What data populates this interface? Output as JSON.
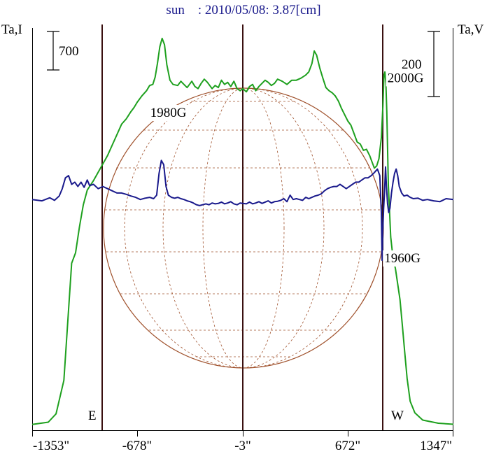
{
  "chart_data": {
    "type": "line",
    "title": "sun    : 2010/05/08: 3.87[cm]",
    "left_axis_label": "Ta,I",
    "right_axis_label": "Ta,V",
    "left_scale_label": "700",
    "right_scale_label": "200",
    "x_ticks": [
      "-1353\"",
      "-678\"",
      "-3\"",
      "672\"",
      "1347\""
    ],
    "limb_labels": {
      "east": "E",
      "west": "W"
    },
    "annotations": [
      {
        "text": "1980G",
        "x": -480,
        "v": 200
      },
      {
        "text": "2000G",
        "x": 1040,
        "v": 280
      },
      {
        "text": "1960G",
        "x": 1020,
        "v": -135
      }
    ],
    "limb_positions_arcsec": [
      -1000,
      -3,
      1000
    ],
    "xlim": [
      -1353,
      1347
    ],
    "series": [
      {
        "key": "stokes_i",
        "color": "#1ea01e",
        "axis": "left",
        "ylim": [
          0,
          3800
        ],
        "points": [
          [
            -1353,
            8
          ],
          [
            -1250,
            30
          ],
          [
            -1200,
            110
          ],
          [
            -1150,
            430
          ],
          [
            -1100,
            1550
          ],
          [
            -1075,
            1650
          ],
          [
            -1050,
            1900
          ],
          [
            -1025,
            2110
          ],
          [
            -1000,
            2250
          ],
          [
            -960,
            2340
          ],
          [
            -930,
            2420
          ],
          [
            -900,
            2500
          ],
          [
            -870,
            2580
          ],
          [
            -840,
            2680
          ],
          [
            -810,
            2780
          ],
          [
            -780,
            2880
          ],
          [
            -750,
            2930
          ],
          [
            -720,
            3000
          ],
          [
            -700,
            3040
          ],
          [
            -680,
            3090
          ],
          [
            -650,
            3150
          ],
          [
            -620,
            3200
          ],
          [
            -600,
            3250
          ],
          [
            -580,
            3260
          ],
          [
            -565,
            3330
          ],
          [
            -550,
            3460
          ],
          [
            -535,
            3620
          ],
          [
            -520,
            3700
          ],
          [
            -505,
            3640
          ],
          [
            -490,
            3450
          ],
          [
            -470,
            3300
          ],
          [
            -450,
            3260
          ],
          [
            -420,
            3250
          ],
          [
            -400,
            3290
          ],
          [
            -380,
            3260
          ],
          [
            -360,
            3230
          ],
          [
            -330,
            3290
          ],
          [
            -310,
            3240
          ],
          [
            -290,
            3220
          ],
          [
            -270,
            3270
          ],
          [
            -250,
            3310
          ],
          [
            -230,
            3280
          ],
          [
            -200,
            3220
          ],
          [
            -180,
            3250
          ],
          [
            -160,
            3230
          ],
          [
            -140,
            3300
          ],
          [
            -120,
            3260
          ],
          [
            -100,
            3280
          ],
          [
            -80,
            3240
          ],
          [
            -60,
            3290
          ],
          [
            -40,
            3220
          ],
          [
            -20,
            3200
          ],
          [
            -3,
            3220
          ],
          [
            20,
            3190
          ],
          [
            40,
            3240
          ],
          [
            60,
            3260
          ],
          [
            80,
            3200
          ],
          [
            100,
            3240
          ],
          [
            120,
            3270
          ],
          [
            140,
            3300
          ],
          [
            160,
            3280
          ],
          [
            180,
            3250
          ],
          [
            200,
            3270
          ],
          [
            220,
            3310
          ],
          [
            250,
            3290
          ],
          [
            280,
            3260
          ],
          [
            310,
            3300
          ],
          [
            340,
            3300
          ],
          [
            370,
            3320
          ],
          [
            400,
            3350
          ],
          [
            420,
            3380
          ],
          [
            440,
            3460
          ],
          [
            455,
            3580
          ],
          [
            470,
            3540
          ],
          [
            490,
            3420
          ],
          [
            510,
            3320
          ],
          [
            530,
            3230
          ],
          [
            550,
            3200
          ],
          [
            570,
            3180
          ],
          [
            590,
            3150
          ],
          [
            610,
            3100
          ],
          [
            630,
            3030
          ],
          [
            650,
            2970
          ],
          [
            670,
            2910
          ],
          [
            690,
            2870
          ],
          [
            710,
            2790
          ],
          [
            730,
            2710
          ],
          [
            750,
            2690
          ],
          [
            770,
            2630
          ],
          [
            790,
            2640
          ],
          [
            810,
            2580
          ],
          [
            825,
            2520
          ],
          [
            840,
            2460
          ],
          [
            855,
            2480
          ],
          [
            870,
            2550
          ],
          [
            885,
            2750
          ],
          [
            895,
            3050
          ],
          [
            902,
            3350
          ],
          [
            908,
            3380
          ],
          [
            914,
            3270
          ],
          [
            920,
            3000
          ],
          [
            930,
            2300
          ],
          [
            945,
            1800
          ],
          [
            960,
            1600
          ],
          [
            975,
            1500
          ],
          [
            990,
            1350
          ],
          [
            1005,
            1200
          ],
          [
            1020,
            950
          ],
          [
            1035,
            700
          ],
          [
            1050,
            450
          ],
          [
            1070,
            230
          ],
          [
            1100,
            120
          ],
          [
            1150,
            50
          ],
          [
            1250,
            20
          ],
          [
            1347,
            10
          ]
        ]
      },
      {
        "key": "stokes_v",
        "color": "#1a1a8c",
        "axis": "right",
        "ylim": [
          -520,
          395
        ],
        "points": [
          [
            -1353,
            0
          ],
          [
            -1290,
            -3
          ],
          [
            -1240,
            4
          ],
          [
            -1210,
            -2
          ],
          [
            -1180,
            8
          ],
          [
            -1160,
            25
          ],
          [
            -1140,
            50
          ],
          [
            -1120,
            55
          ],
          [
            -1100,
            35
          ],
          [
            -1080,
            40
          ],
          [
            -1060,
            30
          ],
          [
            -1040,
            40
          ],
          [
            -1020,
            28
          ],
          [
            -1000,
            45
          ],
          [
            -985,
            32
          ],
          [
            -960,
            35
          ],
          [
            -930,
            25
          ],
          [
            -900,
            30
          ],
          [
            -870,
            25
          ],
          [
            -840,
            20
          ],
          [
            -810,
            15
          ],
          [
            -780,
            15
          ],
          [
            -750,
            12
          ],
          [
            -720,
            8
          ],
          [
            -690,
            5
          ],
          [
            -660,
            0
          ],
          [
            -630,
            3
          ],
          [
            -600,
            5
          ],
          [
            -575,
            2
          ],
          [
            -555,
            10
          ],
          [
            -540,
            60
          ],
          [
            -525,
            90
          ],
          [
            -510,
            80
          ],
          [
            -495,
            30
          ],
          [
            -480,
            10
          ],
          [
            -460,
            5
          ],
          [
            -440,
            3
          ],
          [
            -420,
            5
          ],
          [
            -400,
            2
          ],
          [
            -380,
            0
          ],
          [
            -360,
            -3
          ],
          [
            -340,
            -5
          ],
          [
            -320,
            -8
          ],
          [
            -300,
            -12
          ],
          [
            -280,
            -14
          ],
          [
            -260,
            -12
          ],
          [
            -240,
            -10
          ],
          [
            -220,
            -12
          ],
          [
            -200,
            -8
          ],
          [
            -180,
            -10
          ],
          [
            -160,
            -9
          ],
          [
            -140,
            -6
          ],
          [
            -120,
            -10
          ],
          [
            -100,
            -8
          ],
          [
            -80,
            -5
          ],
          [
            -60,
            -10
          ],
          [
            -40,
            -12
          ],
          [
            -20,
            -8
          ],
          [
            -3,
            -9
          ],
          [
            20,
            -10
          ],
          [
            40,
            -6
          ],
          [
            60,
            -10
          ],
          [
            80,
            -8
          ],
          [
            100,
            -5
          ],
          [
            120,
            -9
          ],
          [
            140,
            -6
          ],
          [
            160,
            -3
          ],
          [
            180,
            -8
          ],
          [
            200,
            -5
          ],
          [
            220,
            -4
          ],
          [
            240,
            -2
          ],
          [
            260,
            2
          ],
          [
            280,
            -5
          ],
          [
            300,
            10
          ],
          [
            320,
            0
          ],
          [
            340,
            2
          ],
          [
            360,
            0
          ],
          [
            380,
            -2
          ],
          [
            400,
            5
          ],
          [
            420,
            2
          ],
          [
            440,
            5
          ],
          [
            460,
            8
          ],
          [
            480,
            10
          ],
          [
            500,
            13
          ],
          [
            520,
            20
          ],
          [
            540,
            25
          ],
          [
            560,
            28
          ],
          [
            580,
            30
          ],
          [
            600,
            30
          ],
          [
            620,
            35
          ],
          [
            640,
            30
          ],
          [
            660,
            25
          ],
          [
            680,
            30
          ],
          [
            700,
            35
          ],
          [
            720,
            40
          ],
          [
            740,
            40
          ],
          [
            760,
            45
          ],
          [
            780,
            50
          ],
          [
            800,
            50
          ],
          [
            820,
            55
          ],
          [
            840,
            62
          ],
          [
            860,
            70
          ],
          [
            875,
            55
          ],
          [
            885,
            -30
          ],
          [
            890,
            -140
          ],
          [
            894,
            -75
          ],
          [
            900,
            -20
          ],
          [
            905,
            15
          ],
          [
            912,
            75
          ],
          [
            918,
            30
          ],
          [
            925,
            -10
          ],
          [
            932,
            -30
          ],
          [
            940,
            -20
          ],
          [
            950,
            15
          ],
          [
            960,
            40
          ],
          [
            970,
            60
          ],
          [
            980,
            70
          ],
          [
            990,
            55
          ],
          [
            1000,
            30
          ],
          [
            1015,
            15
          ],
          [
            1030,
            8
          ],
          [
            1050,
            10
          ],
          [
            1070,
            5
          ],
          [
            1090,
            2
          ],
          [
            1120,
            3
          ],
          [
            1150,
            -2
          ],
          [
            1180,
            0
          ],
          [
            1220,
            -3
          ],
          [
            1260,
            -5
          ],
          [
            1300,
            2
          ],
          [
            1347,
            0
          ]
        ]
      }
    ]
  }
}
